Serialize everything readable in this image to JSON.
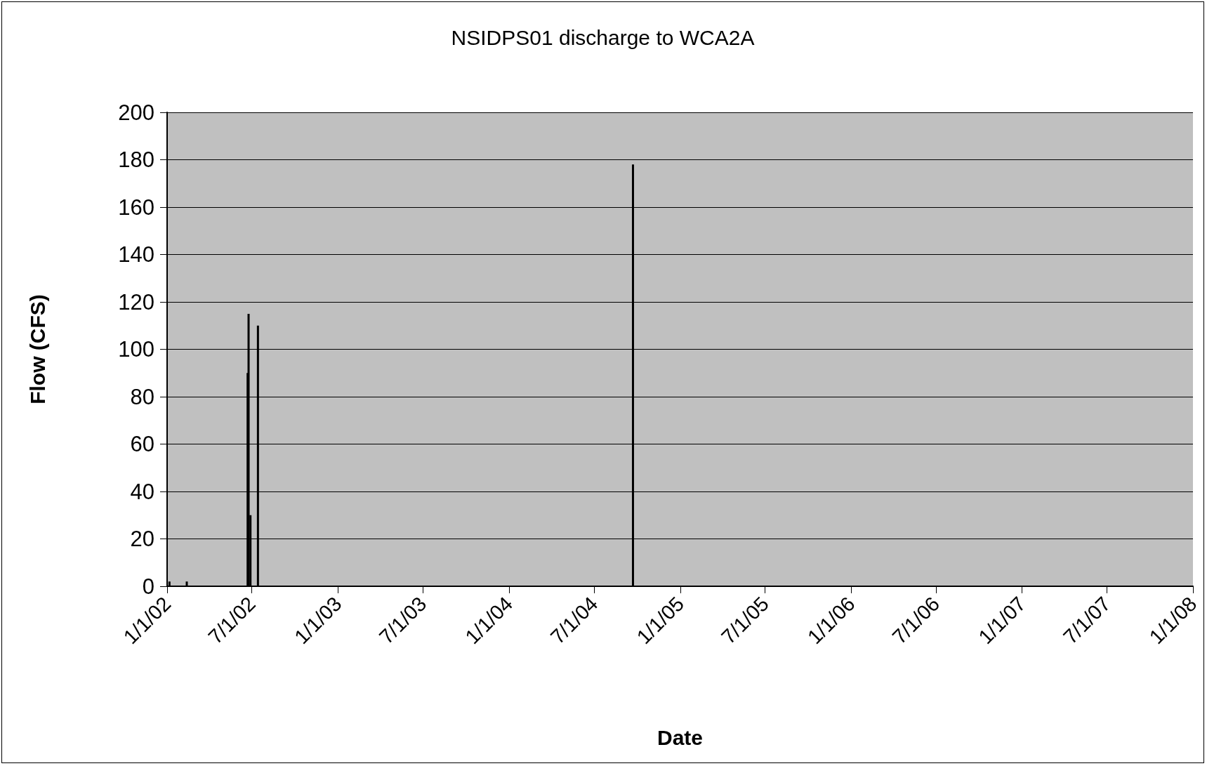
{
  "chart_data": {
    "type": "bar",
    "title": "NSIDPS01 discharge to WCA2A",
    "xlabel": "Date",
    "ylabel": "Flow (CFS)",
    "x": [
      "2002-01-06",
      "2002-02-12",
      "2002-06-22",
      "2002-06-24",
      "2002-06-28",
      "2002-07-14",
      "2004-09-22"
    ],
    "values": [
      2,
      2,
      90,
      115,
      30,
      110,
      178
    ],
    "color": "#000000",
    "xlim": [
      "2002-01-01",
      "2008-01-01"
    ],
    "xticks": [
      {
        "value": "2002-01-01",
        "label": "1/1/02"
      },
      {
        "value": "2002-07-01",
        "label": "7/1/02"
      },
      {
        "value": "2003-01-01",
        "label": "1/1/03"
      },
      {
        "value": "2003-07-01",
        "label": "7/1/03"
      },
      {
        "value": "2004-01-01",
        "label": "1/1/04"
      },
      {
        "value": "2004-07-01",
        "label": "7/1/04"
      },
      {
        "value": "2005-01-01",
        "label": "1/1/05"
      },
      {
        "value": "2005-07-01",
        "label": "7/1/05"
      },
      {
        "value": "2006-01-01",
        "label": "1/1/06"
      },
      {
        "value": "2006-07-01",
        "label": "7/1/06"
      },
      {
        "value": "2007-01-01",
        "label": "1/1/07"
      },
      {
        "value": "2007-07-01",
        "label": "7/1/07"
      },
      {
        "value": "2008-01-01",
        "label": "1/1/08"
      }
    ],
    "ylim": [
      0,
      200
    ],
    "yticks": [
      0,
      20,
      40,
      60,
      80,
      100,
      120,
      140,
      160,
      180,
      200
    ],
    "grid": "y"
  }
}
